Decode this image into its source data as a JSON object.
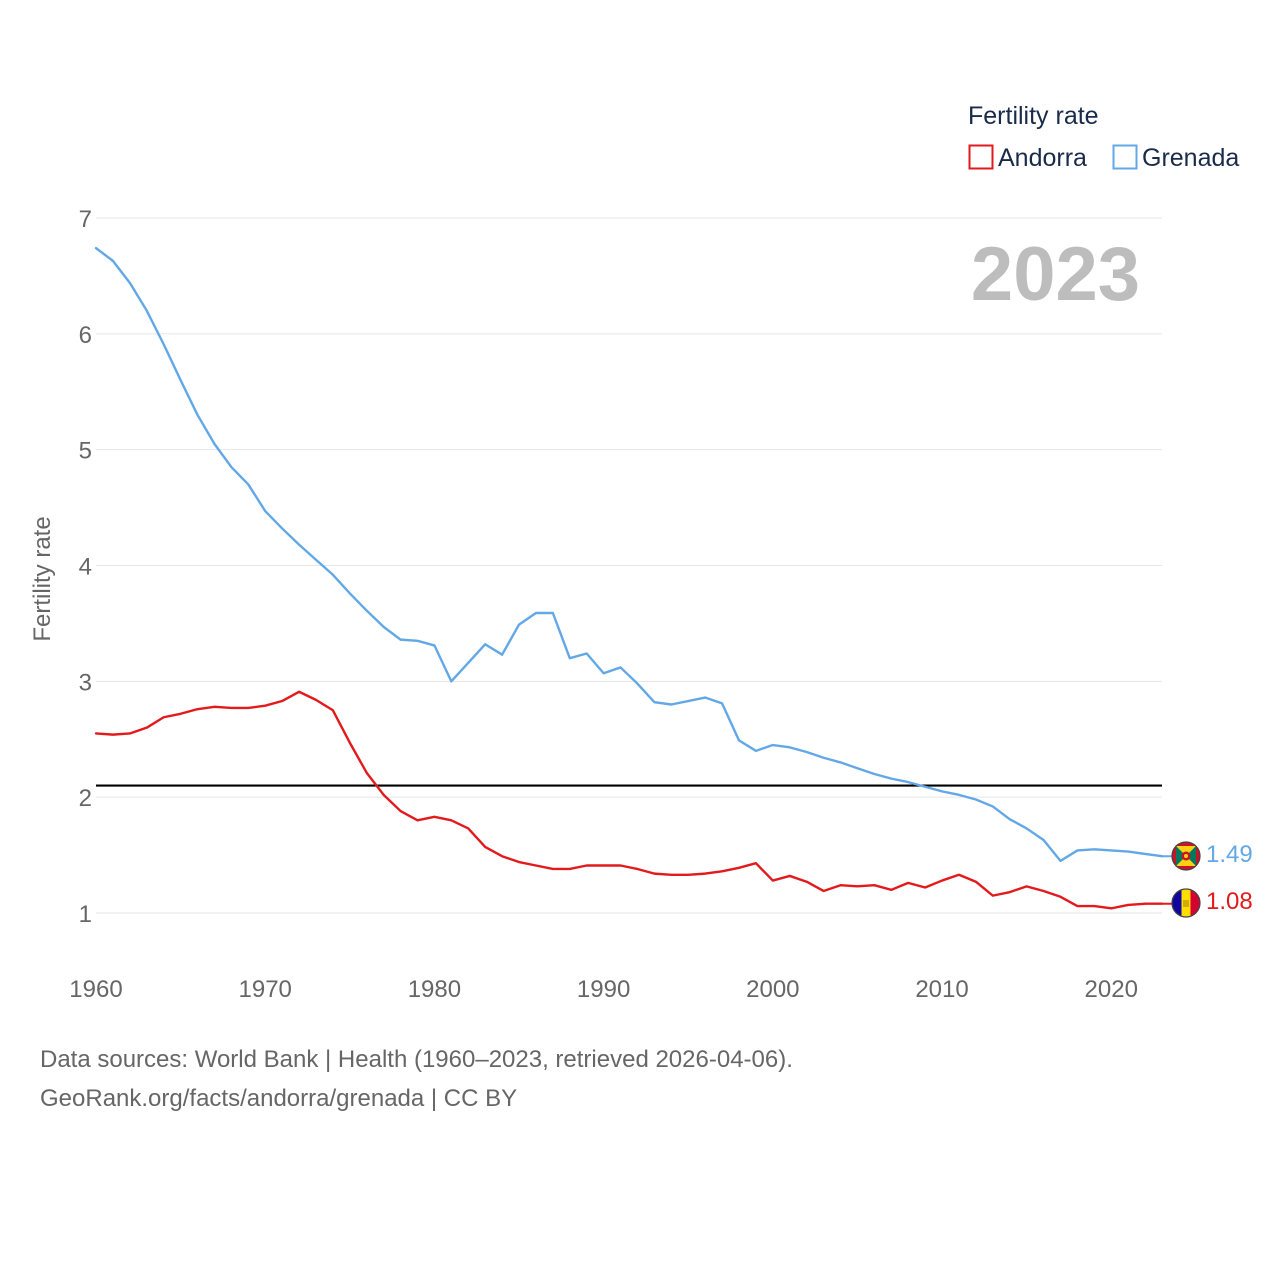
{
  "chart_data": {
    "type": "line",
    "title": "",
    "ylabel": "Fertility rate",
    "xlabel": "",
    "year_label": "2023",
    "legend": {
      "title": "Fertility rate",
      "placement": "top-right"
    },
    "xlim": [
      1960,
      2023
    ],
    "ylim": [
      0.5,
      7.0
    ],
    "x_ticks": [
      1960,
      1970,
      1980,
      1990,
      2000,
      2010,
      2020
    ],
    "y_ticks": [
      1,
      2,
      3,
      4,
      5,
      6,
      7
    ],
    "reference_line": {
      "value": 2.1,
      "color": "#000000"
    },
    "x": [
      1960,
      1961,
      1962,
      1963,
      1964,
      1965,
      1966,
      1967,
      1968,
      1969,
      1970,
      1971,
      1972,
      1973,
      1974,
      1975,
      1976,
      1977,
      1978,
      1979,
      1980,
      1981,
      1982,
      1983,
      1984,
      1985,
      1986,
      1987,
      1988,
      1989,
      1990,
      1991,
      1992,
      1993,
      1994,
      1995,
      1996,
      1997,
      1998,
      1999,
      2000,
      2001,
      2002,
      2003,
      2004,
      2005,
      2006,
      2007,
      2008,
      2009,
      2010,
      2011,
      2012,
      2013,
      2014,
      2015,
      2016,
      2017,
      2018,
      2019,
      2020,
      2021,
      2022,
      2023
    ],
    "series": [
      {
        "name": "Andorra",
        "color": "#e31a1c",
        "end_label": "1.08",
        "values": [
          2.55,
          2.54,
          2.55,
          2.6,
          2.69,
          2.72,
          2.76,
          2.78,
          2.77,
          2.77,
          2.79,
          2.83,
          2.91,
          2.84,
          2.75,
          2.47,
          2.21,
          2.02,
          1.88,
          1.8,
          1.83,
          1.8,
          1.73,
          1.57,
          1.49,
          1.44,
          1.41,
          1.38,
          1.38,
          1.41,
          1.41,
          1.41,
          1.38,
          1.34,
          1.33,
          1.33,
          1.34,
          1.36,
          1.39,
          1.43,
          1.28,
          1.32,
          1.27,
          1.19,
          1.24,
          1.23,
          1.24,
          1.2,
          1.26,
          1.22,
          1.28,
          1.33,
          1.27,
          1.15,
          1.18,
          1.23,
          1.19,
          1.14,
          1.06,
          1.06,
          1.04,
          1.07,
          1.08,
          1.08
        ]
      },
      {
        "name": "Grenada",
        "color": "#63a8e6",
        "end_label": "1.49",
        "values": [
          6.74,
          6.63,
          6.44,
          6.2,
          5.91,
          5.6,
          5.3,
          5.05,
          4.85,
          4.7,
          4.47,
          4.32,
          4.18,
          4.05,
          3.92,
          3.76,
          3.61,
          3.47,
          3.36,
          3.35,
          3.31,
          3.0,
          3.16,
          3.32,
          3.23,
          3.49,
          3.59,
          3.59,
          3.2,
          3.24,
          3.07,
          3.12,
          2.98,
          2.82,
          2.8,
          2.83,
          2.86,
          2.81,
          2.49,
          2.4,
          2.45,
          2.43,
          2.39,
          2.34,
          2.3,
          2.25,
          2.2,
          2.16,
          2.13,
          2.09,
          2.05,
          2.02,
          1.98,
          1.92,
          1.81,
          1.73,
          1.63,
          1.45,
          1.54,
          1.55,
          1.54,
          1.53,
          1.51,
          1.49
        ]
      }
    ]
  },
  "flags": {
    "grenada": {
      "name": "grenada-flag",
      "red": "#ce1126",
      "green": "#007a5e",
      "yellow": "#fcd116"
    },
    "andorra": {
      "name": "andorra-flag",
      "blue": "#10069f",
      "yellow": "#fedd00",
      "red": "#d50032"
    }
  },
  "footer": {
    "line1": "Data sources: World Bank | Health (1960–2023, retrieved 2026-04-06).",
    "line2": "GeoRank.org/facts/andorra/grenada | CC BY"
  }
}
